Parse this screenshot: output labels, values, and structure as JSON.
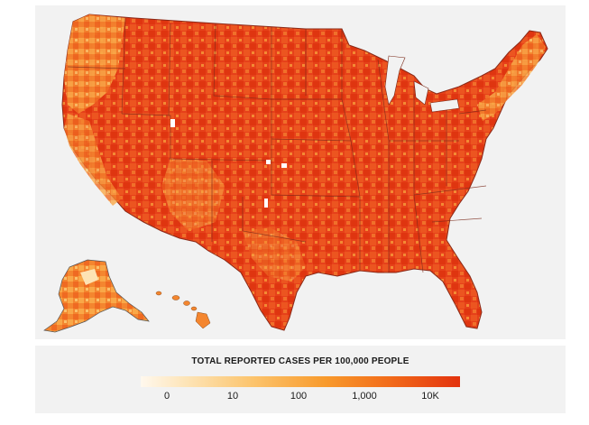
{
  "legend": {
    "title": "TOTAL REPORTED CASES PER 100,000 PEOPLE",
    "ticks": [
      "0",
      "10",
      "100",
      "1,000",
      "10K"
    ],
    "gradient_colors": [
      "#fff8ee",
      "#fde3b4",
      "#fcc46d",
      "#f89a2c",
      "#f26b1a",
      "#e3330e"
    ]
  },
  "map": {
    "regions": [
      "contiguous-us",
      "alaska",
      "hawaii"
    ],
    "dominant_color": "#e33b10",
    "border_color": "#7a2a1a"
  }
}
